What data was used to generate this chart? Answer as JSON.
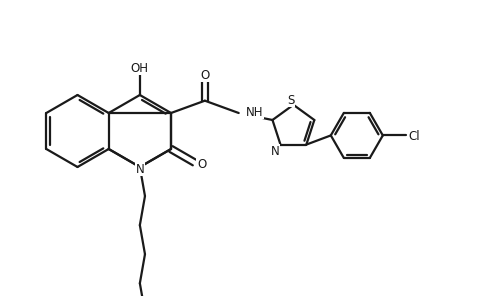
{
  "bg_color": "#ffffff",
  "line_color": "#1a1a1a",
  "line_width": 1.6,
  "font_size": 8.5,
  "fig_width": 4.8,
  "fig_height": 2.96,
  "dpi": 100,
  "xlim": [
    0,
    9.6
  ],
  "ylim": [
    0,
    5.92
  ]
}
